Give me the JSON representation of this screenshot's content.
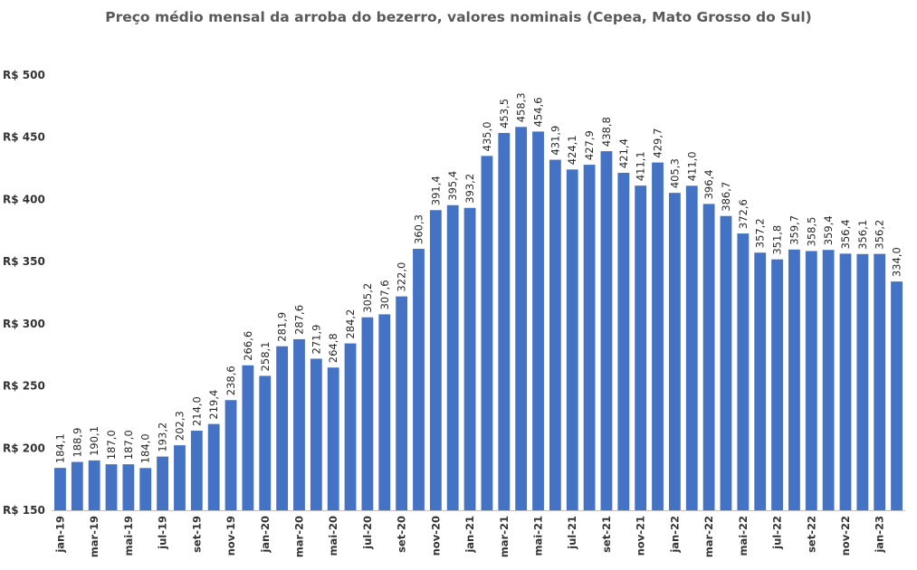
{
  "chart_data": {
    "type": "bar",
    "title": "Preço médio mensal da arroba do bezerro, valores nominais (Cepea, Mato Grosso do Sul)",
    "xlabel": "",
    "ylabel": "",
    "ylim": [
      150,
      500
    ],
    "yticks": [
      150,
      200,
      250,
      300,
      350,
      400,
      450,
      500
    ],
    "ytick_labels": [
      "R$ 150",
      "R$ 200",
      "R$ 250",
      "R$ 300",
      "R$ 350",
      "R$ 400",
      "R$ 450",
      "R$ 500"
    ],
    "grid": false,
    "legend": "none",
    "bar_color": "#4472C4",
    "categories": [
      "jan-19",
      "fev-19",
      "mar-19",
      "abr-19",
      "mai-19",
      "jun-19",
      "jul-19",
      "ago-19",
      "set-19",
      "out-19",
      "nov-19",
      "dez-19",
      "jan-20",
      "fev-20",
      "mar-20",
      "abr-20",
      "mai-20",
      "jun-20",
      "jul-20",
      "ago-20",
      "set-20",
      "out-20",
      "nov-20",
      "dez-20",
      "jan-21",
      "fev-21",
      "mar-21",
      "abr-21",
      "mai-21",
      "jun-21",
      "jul-21",
      "ago-21",
      "set-21",
      "out-21",
      "nov-21",
      "dez-21",
      "jan-22",
      "fev-22",
      "mar-22",
      "abr-22",
      "mai-22",
      "jun-22",
      "jul-22",
      "ago-22",
      "set-22",
      "out-22",
      "nov-22",
      "dez-22",
      "jan-23",
      "fev-23"
    ],
    "x_tick_labels_shown": [
      "jan-19",
      "mar-19",
      "mai-19",
      "jul-19",
      "set-19",
      "nov-19",
      "jan-20",
      "mar-20",
      "mai-20",
      "jul-20",
      "set-20",
      "nov-20",
      "jan-21",
      "mar-21",
      "mai-21",
      "jul-21",
      "set-21",
      "nov-21",
      "jan-22",
      "mar-22",
      "mai-22",
      "jul-22",
      "set-22",
      "nov-22",
      "jan-23"
    ],
    "values": [
      184.1,
      188.9,
      190.1,
      187.0,
      187.0,
      184.0,
      193.2,
      202.3,
      214.0,
      219.4,
      238.6,
      266.6,
      258.1,
      281.9,
      287.6,
      271.9,
      264.8,
      284.2,
      305.2,
      307.6,
      322.0,
      360.3,
      391.4,
      395.4,
      393.2,
      435.0,
      453.5,
      458.3,
      454.6,
      431.9,
      424.1,
      427.9,
      438.8,
      421.4,
      411.1,
      429.7,
      405.3,
      411.0,
      396.4,
      386.7,
      372.6,
      357.2,
      351.8,
      359.7,
      358.5,
      359.4,
      356.4,
      356.1,
      356.2,
      334.0
    ],
    "data_labels": [
      "184,1",
      "188,9",
      "190,1",
      "187,0",
      "187,0",
      "184,0",
      "193,2",
      "202,3",
      "214,0",
      "219,4",
      "238,6",
      "266,6",
      "258,1",
      "281,9",
      "287,6",
      "271,9",
      "264,8",
      "284,2",
      "305,2",
      "307,6",
      "322,0",
      "360,3",
      "391,4",
      "395,4",
      "393,2",
      "435,0",
      "453,5",
      "458,3",
      "454,6",
      "431,9",
      "424,1",
      "427,9",
      "438,8",
      "421,4",
      "411,1",
      "429,7",
      "405,3",
      "411,0",
      "396,4",
      "386,7",
      "372,6",
      "357,2",
      "351,8",
      "359,7",
      "358,5",
      "359,4",
      "356,4",
      "356,1",
      "356,2",
      "334,0"
    ]
  }
}
